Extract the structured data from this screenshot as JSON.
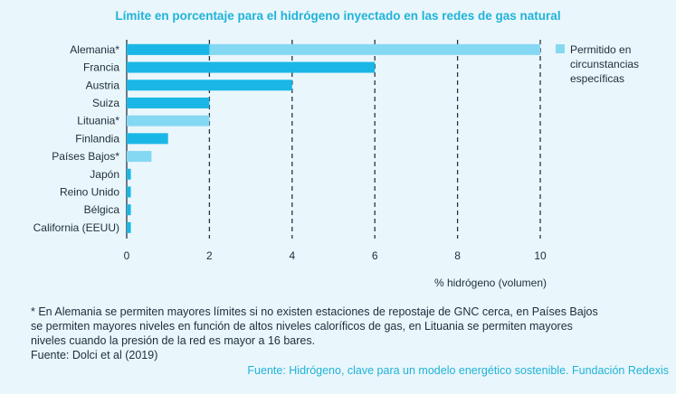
{
  "chart_data": {
    "type": "bar",
    "orientation": "horizontal",
    "title": "Límite en porcentaje para el hidrógeno inyectado en las redes de gas natural",
    "xlabel": "% hidrógeno (volumen)",
    "xlim": [
      0,
      10
    ],
    "xticks": [
      "0",
      "2",
      "4",
      "6",
      "8",
      "10"
    ],
    "grid": "vertical dashed",
    "legend_position": "right",
    "categories": [
      "Alemania*",
      "Francia",
      "Austria",
      "Suiza",
      "Lituania*",
      "Finlandia",
      "Países Bajos*",
      "Japón",
      "Reino Unido",
      "Bélgica",
      "California (EEUU)"
    ],
    "series": [
      {
        "values": [
          2,
          6,
          4,
          2,
          0,
          1,
          0,
          0.1,
          0.1,
          0.1,
          0.1
        ],
        "color": "#1ab7e6"
      },
      {
        "name": "Permitido en circunstancias específicas",
        "values": [
          10,
          0,
          0,
          0,
          2,
          0,
          0.6,
          0,
          0,
          0,
          0
        ],
        "color": "#85d8f2"
      }
    ],
    "legend": {
      "label_lines": [
        "Permitido en",
        "circunstancias",
        "específicas"
      ]
    }
  },
  "notes": [
    "* En Alemania se permiten mayores límites si no existen estaciones de repostaje de GNC cerca, en Países Bajos",
    "se permiten mayores niveles en función de altos niveles caloríficos de gas, en Lituania se permiten mayores",
    "niveles cuando la presión de la red es mayor a 16 bares.",
    "Fuente: Dolci et al (2019)"
  ],
  "source": "Fuente: Hidrógeno, clave para un modelo energético sostenible. Fundación Redexis",
  "colors": {
    "background": "#e9f6fb",
    "title": "#20b3d9",
    "bar_dark": "#1ab7e6",
    "bar_light": "#85d8f2",
    "text": "#1e2d3a"
  }
}
